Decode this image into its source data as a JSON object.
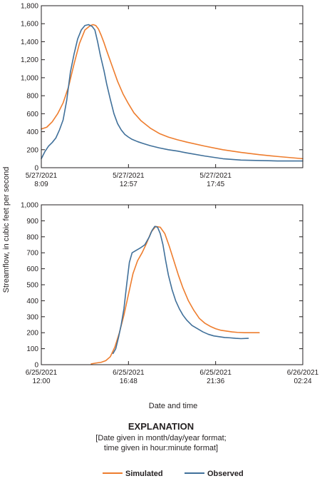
{
  "colors": {
    "simulated": "#ee7d2e",
    "observed": "#40709a",
    "axis": "#231f20"
  },
  "shared": {
    "ylabel": "Streamflow, in cubic feet per second",
    "xlabel": "Date and time"
  },
  "explanation": {
    "title": "EXPLANATION",
    "note_line1": "[Date given in month/day/year format;",
    "note_line2": "time given in hour:minute format]"
  },
  "legend": [
    {
      "name": "Simulated",
      "color": "#ee7d2e"
    },
    {
      "name": "Observed",
      "color": "#40709a"
    }
  ],
  "chart_data": [
    {
      "type": "line",
      "title": "",
      "xlabel": "",
      "ylabel": "Streamflow, in cubic feet per second",
      "x_unit": "hours after 5/27/2021 8:09",
      "xlim": [
        0,
        14.4
      ],
      "ylim": [
        0,
        1800
      ],
      "xticks": [
        {
          "value": 0,
          "line1": "5/27/2021",
          "line2": "8:09"
        },
        {
          "value": 4.8,
          "line1": "5/27/2021",
          "line2": "12:57"
        },
        {
          "value": 9.6,
          "line1": "5/27/2021",
          "line2": "17:45"
        }
      ],
      "yticks": [
        0,
        200,
        400,
        600,
        800,
        1000,
        1200,
        1400,
        1600,
        1800
      ],
      "ytick_labels": [
        "0",
        "200",
        "400",
        "600",
        "800",
        "1,000",
        "1,200",
        "1,400",
        "1,600",
        "1,800"
      ],
      "series": [
        {
          "name": "Simulated",
          "x": [
            0,
            0.3,
            0.6,
            0.9,
            1.2,
            1.5,
            1.8,
            2.1,
            2.4,
            2.7,
            2.85,
            3.0,
            3.15,
            3.3,
            3.45,
            3.6,
            3.9,
            4.2,
            4.5,
            4.8,
            5.1,
            5.5,
            6.0,
            6.5,
            7.0,
            7.5,
            8.0,
            9.0,
            10.0,
            11.0,
            12.0,
            13.0,
            14.4
          ],
          "y": [
            430,
            450,
            510,
            600,
            720,
            900,
            1150,
            1380,
            1530,
            1580,
            1590,
            1580,
            1540,
            1470,
            1390,
            1300,
            1130,
            960,
            820,
            710,
            610,
            520,
            440,
            380,
            340,
            310,
            285,
            240,
            200,
            170,
            145,
            125,
            100
          ]
        },
        {
          "name": "Observed",
          "x": [
            0,
            0.2,
            0.4,
            0.6,
            0.8,
            1.0,
            1.2,
            1.4,
            1.6,
            1.8,
            2.0,
            2.2,
            2.4,
            2.6,
            2.8,
            2.95,
            3.1,
            3.25,
            3.45,
            3.6,
            3.8,
            4.0,
            4.2,
            4.4,
            4.6,
            4.8,
            5.0,
            5.3,
            5.6,
            6.0,
            6.5,
            7.0,
            7.5,
            8.0,
            9.0,
            10.0,
            11.0,
            12.0,
            13.0,
            14.4
          ],
          "y": [
            100,
            180,
            240,
            280,
            330,
            420,
            530,
            750,
            1060,
            1260,
            1430,
            1530,
            1580,
            1590,
            1570,
            1530,
            1400,
            1250,
            1080,
            930,
            760,
            600,
            490,
            420,
            370,
            340,
            315,
            290,
            270,
            245,
            220,
            200,
            185,
            165,
            130,
            100,
            85,
            80,
            75,
            75
          ]
        }
      ]
    },
    {
      "type": "line",
      "title": "",
      "xlabel": "Date and time",
      "ylabel": "Streamflow, in cubic feet per second",
      "x_unit": "hours after 6/25/2021 12:00",
      "xlim": [
        0,
        14.4
      ],
      "ylim": [
        0,
        1000
      ],
      "xticks": [
        {
          "value": 0,
          "line1": "6/25/2021",
          "line2": "12:00"
        },
        {
          "value": 4.8,
          "line1": "6/25/2021",
          "line2": "16:48"
        },
        {
          "value": 9.6,
          "line1": "6/25/2021",
          "line2": "21:36"
        },
        {
          "value": 14.4,
          "line1": "6/26/2021",
          "line2": "02:24"
        }
      ],
      "yticks": [
        0,
        100,
        200,
        300,
        400,
        500,
        600,
        700,
        800,
        900,
        1000
      ],
      "ytick_labels": [
        "0",
        "100",
        "200",
        "300",
        "400",
        "500",
        "600",
        "700",
        "800",
        "900",
        "1,000"
      ],
      "series": [
        {
          "name": "Simulated",
          "x": [
            2.75,
            3.0,
            3.3,
            3.55,
            3.8,
            4.05,
            4.3,
            4.55,
            4.8,
            5.05,
            5.3,
            5.55,
            5.8,
            6.05,
            6.3,
            6.55,
            6.8,
            7.05,
            7.3,
            7.55,
            7.8,
            8.1,
            8.4,
            8.7,
            9.0,
            9.3,
            9.6,
            9.9,
            10.2,
            10.5,
            10.8,
            11.2,
            11.6,
            12.0
          ],
          "y": [
            5,
            10,
            15,
            25,
            50,
            110,
            200,
            310,
            440,
            570,
            650,
            700,
            760,
            830,
            865,
            860,
            820,
            740,
            650,
            560,
            480,
            400,
            340,
            290,
            260,
            240,
            225,
            215,
            210,
            205,
            202,
            200,
            200,
            200
          ]
        },
        {
          "name": "Observed",
          "x": [
            3.95,
            4.1,
            4.25,
            4.4,
            4.55,
            4.7,
            4.85,
            5.0,
            5.15,
            5.3,
            5.45,
            5.7,
            5.95,
            6.1,
            6.25,
            6.4,
            6.55,
            6.7,
            6.85,
            7.0,
            7.2,
            7.4,
            7.6,
            7.8,
            8.0,
            8.3,
            8.6,
            8.9,
            9.2,
            9.5,
            9.8,
            10.1,
            10.4,
            10.7,
            11.0,
            11.4
          ],
          "y": [
            70,
            100,
            170,
            250,
            350,
            500,
            640,
            700,
            710,
            720,
            730,
            750,
            800,
            840,
            865,
            860,
            820,
            750,
            650,
            560,
            470,
            400,
            350,
            310,
            280,
            245,
            225,
            205,
            190,
            180,
            175,
            170,
            168,
            165,
            163,
            165
          ]
        }
      ]
    }
  ]
}
